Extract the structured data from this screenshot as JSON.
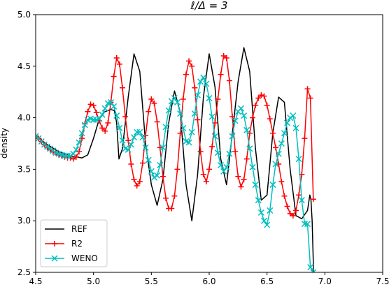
{
  "chart_data": {
    "type": "line",
    "title": "ℓ/Δ = 3",
    "xlabel": "",
    "ylabel": "density",
    "xlim": [
      4.5,
      7.5
    ],
    "ylim": [
      2.5,
      5.0
    ],
    "xticks": [
      4.5,
      5.0,
      5.5,
      6.0,
      6.5,
      7.0,
      7.5
    ],
    "xtick_labels": [
      "4.5",
      "5.0",
      "5.5",
      "6.0",
      "6.5",
      "7.0",
      "7.5"
    ],
    "yticks": [
      2.5,
      3.0,
      3.5,
      4.0,
      4.5,
      5.0
    ],
    "ytick_labels": [
      "2.5",
      "3.0",
      "3.5",
      "4.0",
      "4.5",
      "5.0"
    ],
    "grid": false,
    "legend_position": "lower left",
    "series": [
      {
        "name": "REF",
        "color": "#000000",
        "marker": "none",
        "x": [
          4.5,
          4.6,
          4.7,
          4.8,
          4.85,
          4.9,
          4.95,
          5.0,
          5.05,
          5.1,
          5.15,
          5.18,
          5.2,
          5.22,
          5.25,
          5.3,
          5.35,
          5.4,
          5.45,
          5.5,
          5.55,
          5.6,
          5.65,
          5.7,
          5.75,
          5.8,
          5.85,
          5.9,
          5.95,
          6.0,
          6.05,
          6.1,
          6.15,
          6.2,
          6.25,
          6.3,
          6.35,
          6.4,
          6.45,
          6.5,
          6.55,
          6.6,
          6.65,
          6.7,
          6.75,
          6.8,
          6.85,
          6.87,
          6.88,
          6.89,
          6.895,
          6.9,
          6.9
        ],
        "y": [
          3.82,
          3.74,
          3.67,
          3.63,
          3.62,
          3.61,
          3.64,
          3.8,
          3.99,
          4.06,
          4.08,
          4.07,
          3.95,
          3.6,
          3.7,
          4.2,
          4.62,
          4.45,
          3.75,
          3.35,
          3.15,
          3.4,
          3.95,
          4.26,
          4.05,
          3.35,
          3.0,
          3.45,
          4.2,
          4.62,
          4.3,
          3.6,
          3.35,
          3.85,
          4.35,
          4.68,
          4.45,
          3.7,
          3.2,
          3.25,
          3.85,
          4.2,
          4.15,
          3.5,
          3.05,
          3.02,
          3.1,
          3.25,
          3.2,
          3.0,
          2.8,
          2.6,
          2.5
        ]
      },
      {
        "name": "R2",
        "color": "#ff0000",
        "marker": "+",
        "x": [
          4.5,
          4.525,
          4.55,
          4.575,
          4.6,
          4.625,
          4.65,
          4.675,
          4.7,
          4.725,
          4.75,
          4.775,
          4.8,
          4.825,
          4.85,
          4.875,
          4.9,
          4.925,
          4.95,
          4.975,
          5.0,
          5.025,
          5.05,
          5.075,
          5.1,
          5.125,
          5.15,
          5.175,
          5.2,
          5.225,
          5.25,
          5.275,
          5.3,
          5.325,
          5.35,
          5.375,
          5.4,
          5.425,
          5.45,
          5.475,
          5.5,
          5.525,
          5.55,
          5.575,
          5.6,
          5.625,
          5.65,
          5.675,
          5.7,
          5.725,
          5.75,
          5.775,
          5.8,
          5.825,
          5.85,
          5.875,
          5.9,
          5.925,
          5.95,
          5.975,
          6.0,
          6.025,
          6.05,
          6.075,
          6.1,
          6.125,
          6.15,
          6.175,
          6.2,
          6.225,
          6.25,
          6.275,
          6.3,
          6.325,
          6.35,
          6.375,
          6.4,
          6.425,
          6.45,
          6.475,
          6.5,
          6.525,
          6.55,
          6.575,
          6.6,
          6.625,
          6.65,
          6.675,
          6.7,
          6.725,
          6.75,
          6.775,
          6.8,
          6.825,
          6.85,
          6.875,
          6.9
        ],
        "y": [
          3.82,
          3.8,
          3.77,
          3.74,
          3.71,
          3.69,
          3.67,
          3.66,
          3.64,
          3.63,
          3.62,
          3.61,
          3.61,
          3.6,
          3.62,
          3.67,
          3.8,
          3.94,
          4.06,
          4.13,
          4.12,
          4.05,
          3.97,
          3.9,
          3.87,
          3.95,
          4.15,
          4.4,
          4.58,
          4.52,
          4.29,
          4.01,
          3.78,
          3.55,
          3.4,
          3.34,
          3.38,
          3.56,
          3.83,
          4.06,
          4.18,
          4.14,
          3.96,
          3.71,
          3.43,
          3.22,
          3.12,
          3.12,
          3.24,
          3.5,
          3.85,
          4.18,
          4.42,
          4.55,
          4.5,
          4.29,
          3.98,
          3.67,
          3.45,
          3.38,
          3.5,
          3.72,
          3.95,
          4.18,
          4.42,
          4.6,
          4.58,
          4.36,
          4.01,
          3.67,
          3.43,
          3.33,
          3.4,
          3.6,
          3.85,
          4.0,
          4.12,
          4.19,
          4.22,
          4.21,
          4.12,
          3.99,
          3.85,
          3.71,
          3.55,
          3.38,
          3.24,
          3.14,
          3.07,
          3.05,
          3.1,
          3.25,
          3.45,
          3.8,
          4.28,
          4.19,
          3.21
        ]
      },
      {
        "name": "WENO",
        "color": "#00bfbf",
        "marker": "x",
        "x": [
          4.5,
          4.525,
          4.55,
          4.575,
          4.6,
          4.625,
          4.65,
          4.675,
          4.7,
          4.725,
          4.75,
          4.775,
          4.8,
          4.825,
          4.85,
          4.875,
          4.9,
          4.925,
          4.95,
          4.975,
          5.0,
          5.025,
          5.05,
          5.075,
          5.1,
          5.125,
          5.15,
          5.175,
          5.2,
          5.225,
          5.25,
          5.275,
          5.3,
          5.325,
          5.35,
          5.375,
          5.4,
          5.425,
          5.45,
          5.475,
          5.5,
          5.525,
          5.55,
          5.575,
          5.6,
          5.625,
          5.65,
          5.675,
          5.7,
          5.725,
          5.75,
          5.775,
          5.8,
          5.825,
          5.85,
          5.875,
          5.9,
          5.925,
          5.95,
          5.975,
          6.0,
          6.025,
          6.05,
          6.075,
          6.1,
          6.125,
          6.15,
          6.175,
          6.2,
          6.225,
          6.25,
          6.275,
          6.3,
          6.325,
          6.35,
          6.375,
          6.4,
          6.425,
          6.45,
          6.475,
          6.5,
          6.525,
          6.55,
          6.575,
          6.6,
          6.625,
          6.65,
          6.675,
          6.7,
          6.725,
          6.75,
          6.775,
          6.8,
          6.825,
          6.85,
          6.875,
          6.9
        ],
        "y": [
          3.82,
          3.8,
          3.77,
          3.74,
          3.72,
          3.7,
          3.68,
          3.66,
          3.65,
          3.64,
          3.63,
          3.63,
          3.63,
          3.65,
          3.69,
          3.76,
          3.85,
          3.93,
          3.98,
          3.99,
          3.98,
          3.98,
          3.99,
          4.03,
          4.09,
          4.14,
          4.15,
          4.11,
          4.02,
          3.9,
          3.78,
          3.7,
          3.69,
          3.74,
          3.81,
          3.86,
          3.86,
          3.81,
          3.71,
          3.59,
          3.48,
          3.42,
          3.44,
          3.54,
          3.71,
          3.91,
          4.07,
          4.16,
          4.19,
          4.15,
          4.04,
          3.9,
          3.77,
          3.76,
          3.86,
          4.04,
          4.22,
          4.35,
          4.39,
          4.33,
          4.19,
          4.01,
          3.82,
          3.66,
          3.54,
          3.48,
          3.52,
          3.65,
          3.82,
          3.97,
          4.06,
          4.09,
          4.02,
          3.88,
          3.7,
          3.52,
          3.35,
          3.2,
          3.08,
          3.0,
          2.96,
          3.1,
          3.35,
          3.55,
          3.65,
          3.75,
          3.85,
          3.95,
          4.0,
          4.02,
          3.9,
          3.6,
          3.2,
          2.97,
          2.97,
          2.55,
          2.5
        ]
      }
    ]
  }
}
